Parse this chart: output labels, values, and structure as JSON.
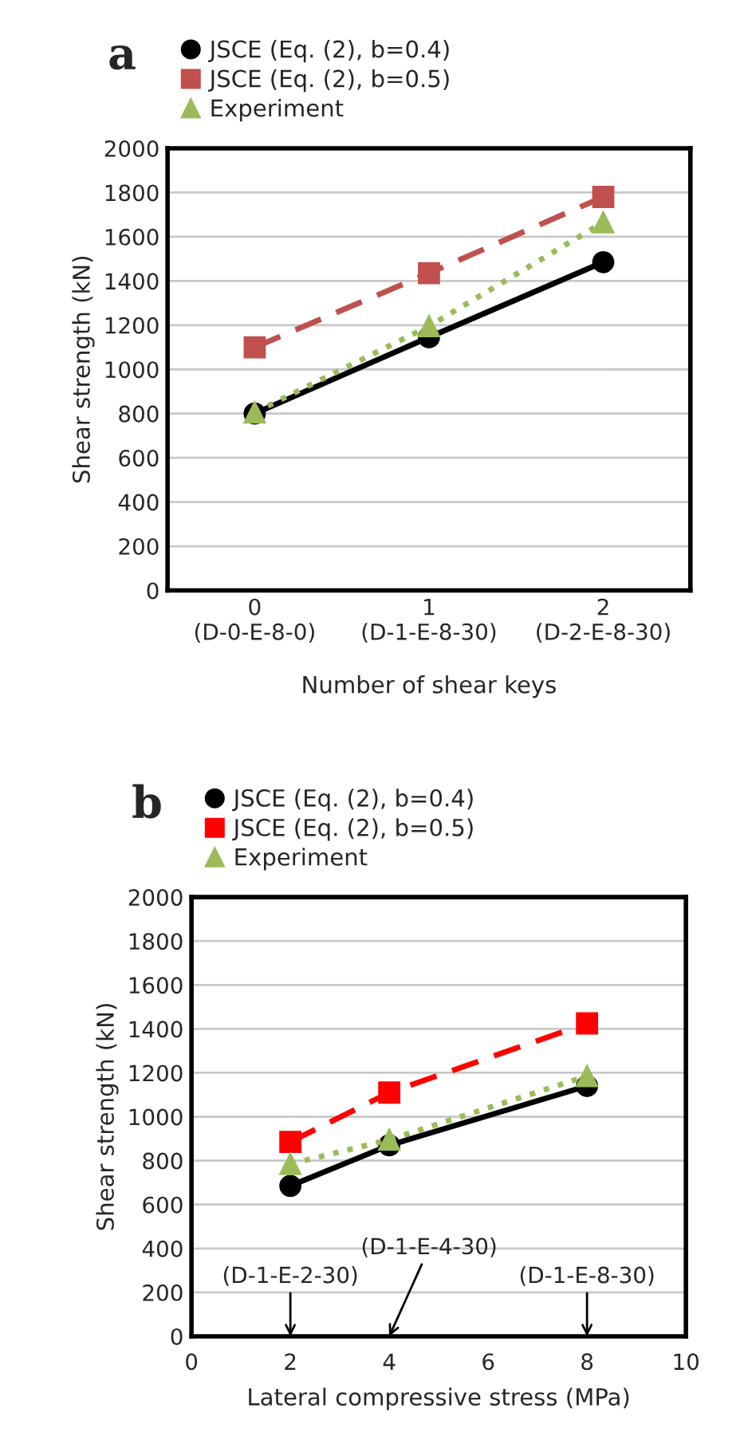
{
  "chart_data": [
    {
      "type": "line",
      "title": "a",
      "xlabel": "Number of shear keys",
      "ylabel": "Shear strength (kN)",
      "categories": [
        "0\n(D-0-E-8-0)",
        "1\n(D-1-E-8-30)",
        "2\n(D-2-E-8-30)"
      ],
      "ylim": [
        0,
        2000
      ],
      "yticks": [
        0,
        200,
        400,
        600,
        800,
        1000,
        1200,
        1400,
        1600,
        1800,
        2000
      ],
      "grid": "y",
      "legend": "top",
      "series": [
        {
          "name": "JSCE (Eq. (2), b=0.4)",
          "color": "#000000",
          "marker": "circle",
          "line_style": "solid",
          "values": [
            800,
            1145,
            1485
          ]
        },
        {
          "name": "JSCE (Eq. (2), b=0.5)",
          "color": "#c0504d",
          "marker": "square",
          "line_style": "dashed",
          "values": [
            1100,
            1435,
            1780
          ]
        },
        {
          "name": "Experiment",
          "color": "#9bbb59",
          "marker": "triangle",
          "line_style": "dotted",
          "values": [
            805,
            1195,
            1665
          ]
        }
      ]
    },
    {
      "type": "line",
      "title": "b",
      "xlabel": "Lateral compressive stress (MPa)",
      "ylabel": "Shear strength (kN)",
      "x": [
        2,
        4,
        8
      ],
      "xlim": [
        0,
        10
      ],
      "xticks": [
        0,
        2,
        4,
        6,
        8,
        10
      ],
      "ylim": [
        0,
        2000
      ],
      "yticks": [
        0,
        200,
        400,
        600,
        800,
        1000,
        1200,
        1400,
        1600,
        1800,
        2000
      ],
      "grid": "y",
      "legend": "top",
      "series": [
        {
          "name": "JSCE (Eq. (2), b=0.4)",
          "color": "#000000",
          "marker": "circle",
          "line_style": "solid",
          "values": [
            685,
            870,
            1140
          ]
        },
        {
          "name": "JSCE (Eq. (2), b=0.5)",
          "color": "#ff0000",
          "marker": "square",
          "line_style": "dashed",
          "values": [
            885,
            1110,
            1425
          ]
        },
        {
          "name": "Experiment",
          "color": "#9bbb59",
          "marker": "triangle",
          "line_style": "dotted",
          "values": [
            785,
            895,
            1185
          ]
        }
      ],
      "annotations": [
        "(D-1-E-2-30)",
        "(D-1-E-4-30)",
        "(D-1-E-8-30)"
      ]
    }
  ]
}
